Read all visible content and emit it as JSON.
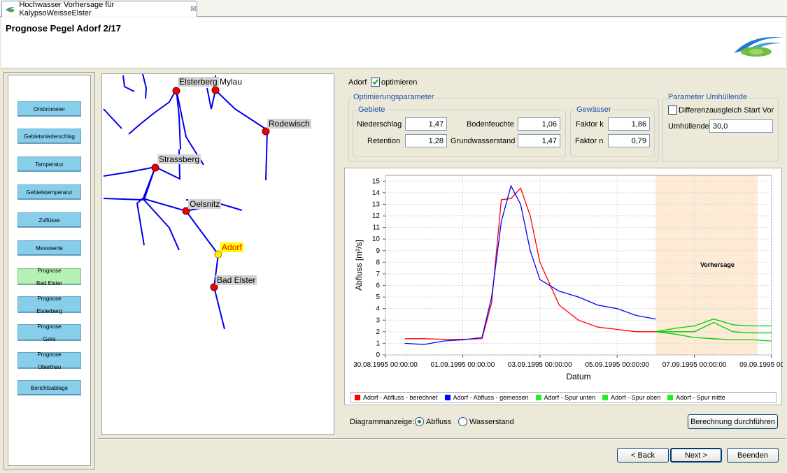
{
  "window": {
    "tab_title": "Hochwasser Vorhersage für KalypsoWeisseElster",
    "close_glyph": "☒"
  },
  "page": {
    "title": "Prognose Pegel Adorf 2/17"
  },
  "nav": {
    "items": [
      {
        "label": "Ombrometer",
        "active": false
      },
      {
        "label": "Gebietsniederschlag",
        "active": false
      },
      {
        "label": "Temperatur",
        "active": false
      },
      {
        "label": "Gebietstemperatur",
        "active": false
      },
      {
        "label": "Zuflüsse",
        "active": false
      },
      {
        "label": "Messwerte",
        "active": false
      },
      {
        "label": "Prognose\nBad Elster",
        "active": true
      },
      {
        "label": "Prognose\nElsterberg",
        "active": false
      },
      {
        "label": "Prognose\nGera",
        "active": false
      },
      {
        "label": "Prognose\nOberthau",
        "active": false
      },
      {
        "label": "Berichtsablage",
        "active": false
      }
    ]
  },
  "map": {
    "stations": [
      {
        "name": "Elsterberg"
      },
      {
        "name": "Mylau"
      },
      {
        "name": "Rodewisch"
      },
      {
        "name": "Strassberg"
      },
      {
        "name": "Oelsnitz"
      },
      {
        "name": "Adorf"
      },
      {
        "name": "Bad Elster"
      }
    ]
  },
  "options": {
    "gauge_label": "Adorf",
    "optimize_label": "optimieren",
    "optimize_checked": true
  },
  "opt_params": {
    "title": "Optimierungsparameter",
    "gebiete": {
      "title": "Gebiete",
      "niederschlag_label": "Niederschlag",
      "niederschlag": "1,47",
      "retention_label": "Retention",
      "retention": "1,28",
      "bodenfeuchte_label": "Bodenfeuchte",
      "bodenfeuchte": "1,06",
      "grundwasser_label": "Grundwasserstand",
      "grundwasser": "1,47"
    },
    "gewaesser": {
      "title": "Gewässer",
      "faktor_k_label": "Faktor k",
      "faktor_k": "1,86",
      "faktor_n_label": "Faktor n",
      "faktor_n": "0,79"
    }
  },
  "envelope": {
    "title": "Parameter Umhüllende",
    "diff_label": "Differenzausgleich Start Vor",
    "diff_checked": false,
    "umh_label": "Umhüllende",
    "umh_value": "30,0"
  },
  "chart_data": {
    "type": "line",
    "ylabel": "Abfluss [m³/s]",
    "xlabel": "Datum",
    "ylim": [
      0,
      15.5
    ],
    "yticks": [
      0,
      1,
      2,
      3,
      4,
      5,
      6,
      7,
      8,
      9,
      10,
      11,
      12,
      13,
      14,
      15
    ],
    "xlim_days": [
      0,
      10
    ],
    "xtick_labels": [
      "30.08.1995 00:00:00",
      "01.09.1995 00:00:00",
      "03.09.1995 00:00:00",
      "05.09.1995 00:00:00",
      "07.09.1995 00:00:00",
      "09.09.1995 00:00:00"
    ],
    "forecast_label": "Vorhersage",
    "forecast_start": "06.09.1995 00:00:00",
    "grid": true,
    "series": [
      {
        "name": "Adorf - Abfluss - berechnet",
        "color": "#ff0000",
        "x": [
          "30.08.1995 12:00",
          "31.08.1995 00:00",
          "31.08.1995 12:00",
          "01.09.1995 00:00",
          "01.09.1995 12:00",
          "01.09.1995 18:00",
          "02.09.1995 00:00",
          "02.09.1995 06:00",
          "02.09.1995 12:00",
          "02.09.1995 18:00",
          "03.09.1995 00:00",
          "03.09.1995 12:00",
          "04.09.1995 00:00",
          "04.09.1995 12:00",
          "05.09.1995 00:00",
          "05.09.1995 12:00",
          "06.09.1995 00:00"
        ],
        "values": [
          1.4,
          1.4,
          1.35,
          1.35,
          1.4,
          4.5,
          13.4,
          13.5,
          14.4,
          12.0,
          8.0,
          4.3,
          3.0,
          2.4,
          2.2,
          2.0,
          2.0
        ]
      },
      {
        "name": "Adorf - Abfluss - gemessen",
        "color": "#0000ff",
        "x": [
          "30.08.1995 12:00",
          "31.08.1995 00:00",
          "31.08.1995 12:00",
          "01.09.1995 00:00",
          "01.09.1995 12:00",
          "01.09.1995 18:00",
          "02.09.1995 00:00",
          "02.09.1995 06:00",
          "02.09.1995 12:00",
          "02.09.1995 18:00",
          "03.09.1995 00:00",
          "03.09.1995 12:00",
          "04.09.1995 00:00",
          "04.09.1995 12:00",
          "05.09.1995 00:00",
          "05.09.1995 12:00",
          "06.09.1995 00:00"
        ],
        "values": [
          1.0,
          0.9,
          1.2,
          1.3,
          1.5,
          5.0,
          11.5,
          14.6,
          13.0,
          9.0,
          6.5,
          5.5,
          5.0,
          4.3,
          4.0,
          3.4,
          3.1
        ]
      },
      {
        "name": "Adorf - Spur unten",
        "color": "#00cc00",
        "x": [
          "06.09.1995 00:00",
          "06.09.1995 12:00",
          "07.09.1995 00:00",
          "07.09.1995 12:00",
          "08.09.1995 00:00",
          "08.09.1995 12:00",
          "09.09.1995 00:00"
        ],
        "values": [
          2.0,
          1.8,
          1.5,
          1.4,
          1.3,
          1.3,
          1.2
        ]
      },
      {
        "name": "Adorf - Spur oben",
        "color": "#00cc00",
        "x": [
          "06.09.1995 00:00",
          "06.09.1995 12:00",
          "07.09.1995 00:00",
          "07.09.1995 12:00",
          "08.09.1995 00:00",
          "08.09.1995 12:00",
          "09.09.1995 00:00"
        ],
        "values": [
          2.0,
          2.3,
          2.5,
          3.1,
          2.6,
          2.5,
          2.5
        ]
      },
      {
        "name": "Adorf - Spur mitte",
        "color": "#00cc00",
        "x": [
          "06.09.1995 00:00",
          "06.09.1995 12:00",
          "07.09.1995 00:00",
          "07.09.1995 12:00",
          "08.09.1995 00:00",
          "08.09.1995 12:00",
          "09.09.1995 00:00"
        ],
        "values": [
          2.0,
          2.0,
          2.0,
          2.8,
          2.0,
          1.9,
          1.9
        ]
      }
    ]
  },
  "display": {
    "label": "Diagrammanzeige:",
    "opt_abfluss": "Abfluss",
    "opt_wasserstand": "Wasserstand",
    "selected": "Abfluss"
  },
  "buttons": {
    "calculate": "Berechnung durchführen",
    "back": "< Back",
    "next": "Next >",
    "finish": "Beenden"
  }
}
